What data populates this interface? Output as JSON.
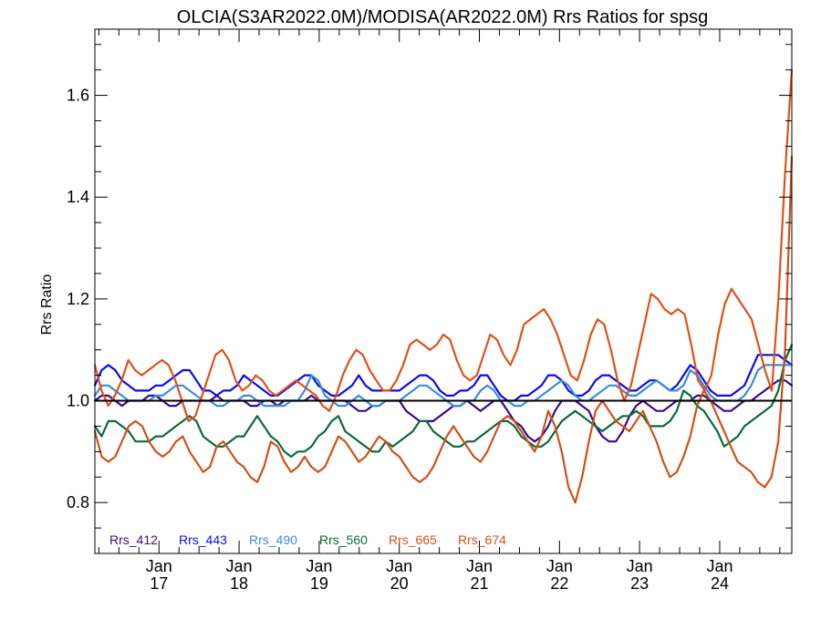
{
  "chart_data": {
    "type": "line",
    "title": "OLCIA(S3AR2022.0M)/MODISA(AR2022.0M)  Rrs Ratios for spsg",
    "ylabel": "Rrs Ratio",
    "xlabel": "",
    "xlim": [
      2016.2,
      2024.9
    ],
    "ylim": [
      0.7,
      1.73
    ],
    "yticks": [
      0.8,
      1.0,
      1.2,
      1.4,
      1.6
    ],
    "ytick_labels": [
      "0.8",
      "1.0",
      "1.2",
      "1.4",
      "1.6"
    ],
    "xticks": [
      2017,
      2018,
      2019,
      2020,
      2021,
      2022,
      2023,
      2024
    ],
    "xtick_labels": [
      {
        "line1": "Jan",
        "line2": "17"
      },
      {
        "line1": "Jan",
        "line2": "18"
      },
      {
        "line1": "Jan",
        "line2": "19"
      },
      {
        "line1": "Jan",
        "line2": "20"
      },
      {
        "line1": "Jan",
        "line2": "21"
      },
      {
        "line1": "Jan",
        "line2": "22"
      },
      {
        "line1": "Jan",
        "line2": "23"
      },
      {
        "line1": "Jan",
        "line2": "24"
      }
    ],
    "reference_line": 1.0,
    "legend_position": "bottom-left",
    "grid": false,
    "series": [
      {
        "name": "Rrs_412",
        "color": "#3a0a8a",
        "values": [
          1.0,
          1.01,
          1.01,
          1.0,
          0.99,
          1.0,
          1.0,
          1.0,
          1.01,
          1.01,
          1.0,
          0.99,
          0.99,
          1.0,
          1.0,
          1.0,
          1.0,
          1.0,
          1.01,
          1.0,
          1.0,
          1.0,
          1.0,
          0.99,
          0.99,
          1.0,
          1.0,
          0.99,
          1.0,
          1.0,
          1.0,
          1.0,
          1.01,
          1.0,
          1.0,
          1.0,
          1.0,
          1.0,
          0.99,
          0.98,
          0.98,
          0.99,
          0.99,
          1.0,
          1.0,
          1.0,
          0.98,
          0.97,
          0.96,
          0.96,
          0.96,
          0.97,
          0.98,
          0.99,
          0.99,
          1.0,
          0.99,
          0.98,
          0.99,
          1.0,
          1.0,
          0.98,
          0.96,
          0.95,
          0.93,
          0.92,
          0.93,
          0.95,
          0.98,
          1.0,
          1.0,
          1.0,
          0.99,
          0.98,
          0.95,
          0.93,
          0.92,
          0.92,
          0.94,
          0.97,
          0.99,
          1.0,
          0.99,
          0.98,
          0.98,
          0.99,
          1.0,
          1.0,
          1.0,
          1.01,
          1.01,
          1.0,
          0.99,
          0.98,
          0.98,
          0.99,
          1.0,
          1.0,
          1.01,
          1.02,
          1.03,
          1.04,
          1.04,
          1.03
        ]
      },
      {
        "name": "Rrs_443",
        "color": "#0a0af0",
        "values": [
          1.03,
          1.06,
          1.07,
          1.06,
          1.04,
          1.03,
          1.02,
          1.02,
          1.02,
          1.03,
          1.03,
          1.04,
          1.05,
          1.06,
          1.06,
          1.04,
          1.02,
          1.02,
          1.01,
          1.02,
          1.02,
          1.03,
          1.05,
          1.04,
          1.03,
          1.02,
          1.01,
          1.01,
          1.02,
          1.03,
          1.04,
          1.05,
          1.05,
          1.03,
          1.02,
          1.01,
          1.01,
          1.02,
          1.03,
          1.05,
          1.03,
          1.02,
          1.02,
          1.02,
          1.02,
          1.02,
          1.03,
          1.04,
          1.05,
          1.05,
          1.04,
          1.02,
          1.01,
          1.01,
          1.02,
          1.02,
          1.03,
          1.05,
          1.05,
          1.03,
          1.01,
          1.0,
          1.0,
          1.01,
          1.01,
          1.02,
          1.03,
          1.05,
          1.05,
          1.04,
          1.02,
          1.01,
          1.01,
          1.02,
          1.04,
          1.05,
          1.05,
          1.04,
          1.03,
          1.02,
          1.02,
          1.03,
          1.04,
          1.04,
          1.03,
          1.02,
          1.03,
          1.05,
          1.07,
          1.06,
          1.04,
          1.02,
          1.01,
          1.01,
          1.01,
          1.02,
          1.03,
          1.06,
          1.09,
          1.09,
          1.09,
          1.09,
          1.08,
          1.07
        ]
      },
      {
        "name": "Rrs_490",
        "color": "#3a8ed4",
        "values": [
          1.01,
          1.03,
          1.03,
          1.02,
          1.01,
          1.0,
          1.0,
          1.0,
          1.0,
          1.01,
          1.01,
          1.02,
          1.03,
          1.03,
          1.02,
          1.01,
          1.0,
          1.0,
          0.99,
          0.99,
          1.0,
          1.0,
          1.01,
          1.01,
          1.0,
          0.99,
          0.99,
          0.99,
          0.99,
          1.0,
          1.0,
          1.02,
          1.05,
          1.04,
          1.01,
          1.0,
          0.99,
          0.99,
          1.0,
          1.01,
          1.0,
          0.99,
          0.99,
          1.0,
          1.0,
          1.0,
          1.01,
          1.02,
          1.03,
          1.03,
          1.02,
          1.01,
          1.0,
          0.99,
          0.99,
          1.0,
          1.0,
          1.02,
          1.03,
          1.02,
          1.0,
          1.0,
          0.99,
          0.99,
          1.0,
          1.0,
          1.01,
          1.02,
          1.03,
          1.04,
          1.03,
          1.01,
          1.0,
          1.0,
          1.01,
          1.02,
          1.03,
          1.03,
          1.02,
          1.01,
          1.01,
          1.02,
          1.03,
          1.04,
          1.03,
          1.02,
          1.02,
          1.03,
          1.06,
          1.05,
          1.03,
          1.01,
          1.0,
          1.0,
          1.0,
          1.0,
          1.01,
          1.03,
          1.06,
          1.07,
          1.07,
          1.07,
          1.07,
          1.07
        ]
      },
      {
        "name": "Rrs_560",
        "color": "#0a6a3a",
        "values": [
          0.95,
          0.93,
          0.96,
          0.96,
          0.95,
          0.94,
          0.92,
          0.92,
          0.92,
          0.93,
          0.93,
          0.94,
          0.95,
          0.96,
          0.97,
          0.96,
          0.93,
          0.92,
          0.91,
          0.91,
          0.92,
          0.93,
          0.93,
          0.95,
          0.97,
          0.95,
          0.93,
          0.92,
          0.9,
          0.89,
          0.9,
          0.9,
          0.91,
          0.93,
          0.94,
          0.96,
          0.97,
          0.94,
          0.93,
          0.92,
          0.91,
          0.9,
          0.9,
          0.92,
          0.91,
          0.92,
          0.93,
          0.94,
          0.96,
          0.96,
          0.94,
          0.93,
          0.92,
          0.91,
          0.91,
          0.92,
          0.92,
          0.93,
          0.94,
          0.95,
          0.96,
          0.96,
          0.95,
          0.93,
          0.92,
          0.91,
          0.91,
          0.92,
          0.94,
          0.96,
          0.97,
          0.98,
          0.97,
          0.96,
          0.95,
          0.94,
          0.95,
          0.96,
          0.97,
          0.97,
          0.98,
          0.97,
          0.95,
          0.95,
          0.95,
          0.96,
          0.98,
          1.02,
          1.01,
          0.99,
          0.98,
          0.96,
          0.94,
          0.91,
          0.92,
          0.93,
          0.95,
          0.96,
          0.97,
          0.98,
          0.99,
          1.02,
          1.08,
          1.11
        ]
      },
      {
        "name": "Rrs_665",
        "color": "#e0501a",
        "values": [
          1.07,
          1.02,
          0.99,
          1.01,
          1.04,
          1.08,
          1.06,
          1.05,
          1.06,
          1.07,
          1.08,
          1.07,
          1.04,
          1.0,
          0.96,
          0.97,
          1.01,
          1.05,
          1.09,
          1.1,
          1.08,
          1.04,
          1.02,
          1.03,
          1.05,
          1.04,
          1.02,
          1.01,
          1.02,
          1.03,
          1.04,
          1.03,
          1.02,
          1.01,
          0.99,
          0.98,
          1.01,
          1.05,
          1.08,
          1.1,
          1.09,
          1.06,
          1.04,
          1.02,
          1.02,
          1.04,
          1.07,
          1.11,
          1.12,
          1.11,
          1.1,
          1.11,
          1.13,
          1.12,
          1.08,
          1.05,
          1.04,
          1.05,
          1.09,
          1.13,
          1.12,
          1.09,
          1.07,
          1.1,
          1.15,
          1.16,
          1.17,
          1.18,
          1.16,
          1.13,
          1.09,
          1.05,
          1.04,
          1.08,
          1.13,
          1.16,
          1.15,
          1.1,
          1.04,
          1.0,
          1.03,
          1.09,
          1.15,
          1.21,
          1.2,
          1.18,
          1.17,
          1.18,
          1.17,
          1.11,
          1.04,
          1.02,
          1.05,
          1.13,
          1.19,
          1.22,
          1.2,
          1.18,
          1.16,
          1.11,
          1.06,
          1.02,
          1.2,
          1.45,
          1.65
        ]
      },
      {
        "name": "Rrs_674",
        "color": "#d0501a",
        "values": [
          0.94,
          0.89,
          0.88,
          0.89,
          0.92,
          0.95,
          0.96,
          0.95,
          0.92,
          0.9,
          0.89,
          0.9,
          0.92,
          0.93,
          0.9,
          0.88,
          0.86,
          0.87,
          0.91,
          0.92,
          0.9,
          0.88,
          0.87,
          0.85,
          0.84,
          0.87,
          0.92,
          0.91,
          0.88,
          0.86,
          0.87,
          0.89,
          0.87,
          0.86,
          0.87,
          0.9,
          0.93,
          0.92,
          0.9,
          0.88,
          0.89,
          0.91,
          0.93,
          0.92,
          0.9,
          0.89,
          0.87,
          0.85,
          0.84,
          0.85,
          0.87,
          0.9,
          0.93,
          0.95,
          0.93,
          0.91,
          0.89,
          0.88,
          0.9,
          0.93,
          0.96,
          0.97,
          0.96,
          0.94,
          0.92,
          0.9,
          0.93,
          0.98,
          0.95,
          0.9,
          0.83,
          0.8,
          0.85,
          0.92,
          0.98,
          1.0,
          0.98,
          0.96,
          0.95,
          0.94,
          0.96,
          0.98,
          0.95,
          0.92,
          0.88,
          0.85,
          0.86,
          0.89,
          0.93,
          0.99,
          1.02,
          1.0,
          0.97,
          0.94,
          0.91,
          0.88,
          0.87,
          0.86,
          0.84,
          0.83,
          0.85,
          0.92,
          1.1,
          1.48
        ]
      }
    ]
  }
}
